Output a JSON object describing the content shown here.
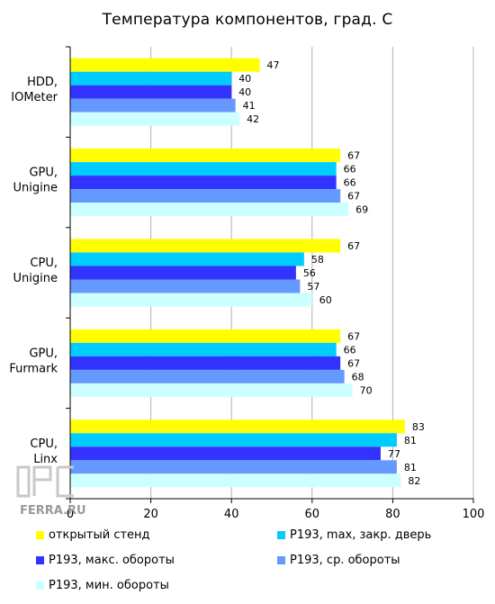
{
  "chart_data": {
    "type": "bar",
    "orientation": "horizontal",
    "title": "Температура компонентов, град. С",
    "categories": [
      [
        "HDD,",
        "IOMeter"
      ],
      [
        "GPU,",
        "Unigine"
      ],
      [
        "CPU,",
        "Unigine"
      ],
      [
        "GPU,",
        "Furmark"
      ],
      [
        "CPU,",
        "Linx"
      ]
    ],
    "series": [
      {
        "name": "открытый стенд",
        "color": "#ffff00",
        "values": [
          47,
          67,
          67,
          67,
          83
        ]
      },
      {
        "name": "P193, max, закр. дверь",
        "color": "#00ccff",
        "values": [
          40,
          66,
          58,
          66,
          81
        ]
      },
      {
        "name": "P193, макс. обороты",
        "color": "#3333ff",
        "values": [
          40,
          66,
          56,
          67,
          77
        ]
      },
      {
        "name": "P193, ср. обороты",
        "color": "#6699ff",
        "values": [
          41,
          67,
          57,
          68,
          81
        ]
      },
      {
        "name": "P193, мин. обороты",
        "color": "#ccffff",
        "values": [
          42,
          69,
          60,
          70,
          82
        ]
      }
    ],
    "xlim": [
      0,
      100
    ],
    "xticks": [
      0,
      20,
      40,
      60,
      80,
      100
    ],
    "grid": true,
    "legend_position": "bottom"
  },
  "watermark_text": "FERRA.RU"
}
